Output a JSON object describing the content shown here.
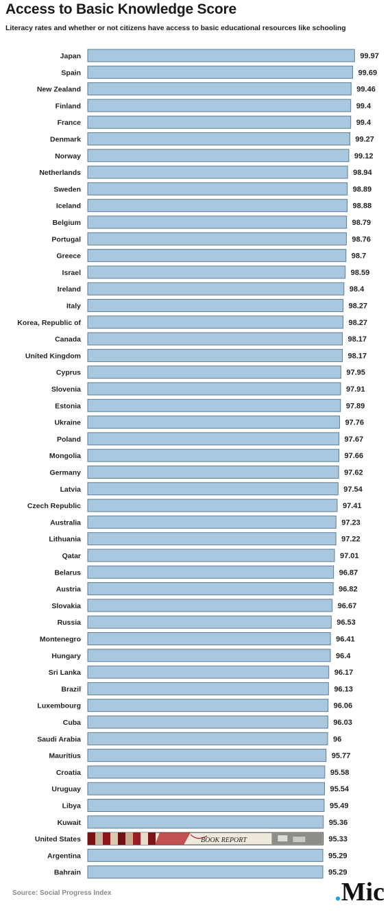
{
  "title": "Access to Basic Knowledge Score",
  "subtitle": "Literacy rates and whether or not citizens have access to basic educational resources like schooling",
  "source": "Source: Social Progress Index",
  "logo": {
    "dot": ".",
    "text": "Mic"
  },
  "colors": {
    "bar_fill": "#a9c8df",
    "bar_stroke": "#5d7c92",
    "logo_dot": "#1aa3e8"
  },
  "chart_data": {
    "type": "bar",
    "orientation": "horizontal",
    "title": "Access to Basic Knowledge Score",
    "subtitle": "Literacy rates and whether or not citizens have access to basic educational resources like schooling",
    "grid": false,
    "highlighted": {
      "category": "United States",
      "image_label": "BOOK REPORT"
    },
    "categories": [
      "Japan",
      "Spain",
      "New Zealand",
      "Finland",
      "France",
      "Denmark",
      "Norway",
      "Netherlands",
      "Sweden",
      "Iceland",
      "Belgium",
      "Portugal",
      "Greece",
      "Israel",
      "Ireland",
      "Italy",
      "Korea, Republic of",
      "Canada",
      "United Kingdom",
      "Cyprus",
      "Slovenia",
      "Estonia",
      "Ukraine",
      "Poland",
      "Mongolia",
      "Germany",
      "Latvia",
      "Czech Republic",
      "Australia",
      "Lithuania",
      "Qatar",
      "Belarus",
      "Austria",
      "Slovakia",
      "Russia",
      "Montenegro",
      "Hungary",
      "Sri Lanka",
      "Brazil",
      "Luxembourg",
      "Cuba",
      "Saudi Arabia",
      "Mauritius",
      "Croatia",
      "Uruguay",
      "Libya",
      "Kuwait",
      "United States",
      "Argentina",
      "Bahrain"
    ],
    "values": [
      99.97,
      99.69,
      99.46,
      99.4,
      99.4,
      99.27,
      99.12,
      98.94,
      98.89,
      98.88,
      98.79,
      98.76,
      98.7,
      98.59,
      98.4,
      98.27,
      98.27,
      98.17,
      98.17,
      97.95,
      97.91,
      97.89,
      97.76,
      97.67,
      97.66,
      97.62,
      97.54,
      97.41,
      97.23,
      97.22,
      97.01,
      96.87,
      96.82,
      96.67,
      96.53,
      96.41,
      96.4,
      96.17,
      96.13,
      96.06,
      96.03,
      96,
      95.77,
      95.58,
      95.54,
      95.49,
      95.36,
      95.33,
      95.29,
      95.29
    ],
    "value_labels": [
      "99.97",
      "99.69",
      "99.46",
      "99.4",
      "99.4",
      "99.27",
      "99.12",
      "98.94",
      "98.89",
      "98.88",
      "98.79",
      "98.76",
      "98.7",
      "98.59",
      "98.4",
      "98.27",
      "98.27",
      "98.17",
      "98.17",
      "97.95",
      "97.91",
      "97.89",
      "97.76",
      "97.67",
      "97.66",
      "97.62",
      "97.54",
      "97.41",
      "97.23",
      "97.22",
      "97.01",
      "96.87",
      "96.82",
      "96.67",
      "96.53",
      "96.41",
      "96.4",
      "96.17",
      "96.13",
      "96.06",
      "96.03",
      "96",
      "95.77",
      "95.58",
      "95.54",
      "95.49",
      "95.36",
      "95.33",
      "95.29",
      "95.29"
    ]
  }
}
